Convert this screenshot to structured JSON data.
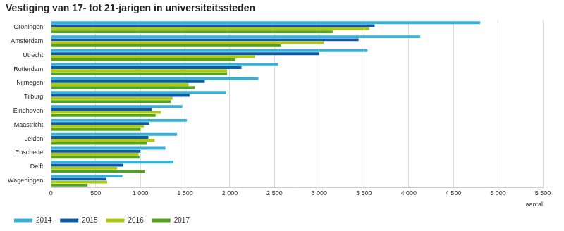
{
  "chart_data": {
    "type": "bar",
    "orientation": "horizontal",
    "title": "Vestiging van 17- tot 21-jarigen in universiteitssteden",
    "x_label": "aantal",
    "categories": [
      "Groningen",
      "Amsterdam",
      "Utrecht",
      "Rotterdam",
      "Nijmegen",
      "Tilburg",
      "Eindhoven",
      "Maastricht",
      "Leiden",
      "Enschede",
      "Delft",
      "Wageningen"
    ],
    "series": [
      {
        "name": "2014",
        "color": "#35b1d9",
        "values": [
          4800,
          4130,
          3540,
          2540,
          2320,
          1960,
          1470,
          1520,
          1410,
          1280,
          1370,
          800
        ]
      },
      {
        "name": "2015",
        "color": "#0d5aa7",
        "values": [
          3620,
          3440,
          3000,
          2130,
          1720,
          1550,
          1130,
          1100,
          1090,
          1000,
          810,
          620
        ]
      },
      {
        "name": "2016",
        "color": "#afca0b",
        "values": [
          3560,
          3050,
          2280,
          1970,
          1540,
          1360,
          1230,
          1040,
          1160,
          980,
          740,
          630
        ]
      },
      {
        "name": "2017",
        "color": "#53a31d",
        "values": [
          3150,
          2570,
          2060,
          1970,
          1610,
          1340,
          1170,
          1000,
          1070,
          990,
          1050,
          410
        ]
      }
    ],
    "xlim": [
      0,
      5500
    ],
    "xticks": [
      0,
      500,
      {
        "value": 1000,
        "label": "1 000"
      },
      {
        "value": 1500,
        "label": "1 500"
      },
      {
        "value": 2000,
        "label": "2 000"
      },
      {
        "value": 2500,
        "label": "2 500"
      },
      {
        "value": 3000,
        "label": "3 000"
      },
      {
        "value": 3500,
        "label": "3 500"
      },
      {
        "value": 4000,
        "label": "4 000"
      },
      {
        "value": 4500,
        "label": "4 500"
      },
      {
        "value": 5000,
        "label": "5 000"
      },
      {
        "value": 5500,
        "label": "5 500"
      }
    ],
    "grid": true,
    "legend": "bottom-left"
  }
}
